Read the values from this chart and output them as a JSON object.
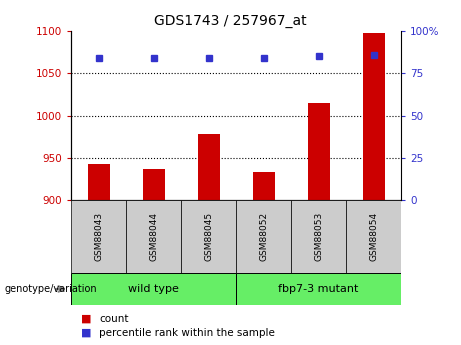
{
  "title": "GDS1743 / 257967_at",
  "categories": [
    "GSM88043",
    "GSM88044",
    "GSM88045",
    "GSM88052",
    "GSM88053",
    "GSM88054"
  ],
  "count_values": [
    943,
    937,
    978,
    933,
    1015,
    1098
  ],
  "percentile_values": [
    84,
    84,
    84,
    84,
    85,
    86
  ],
  "ylim_left": [
    900,
    1100
  ],
  "ylim_right": [
    0,
    100
  ],
  "yticks_left": [
    900,
    950,
    1000,
    1050,
    1100
  ],
  "yticks_right": [
    0,
    25,
    50,
    75,
    100
  ],
  "bar_color": "#cc0000",
  "dot_color": "#3333cc",
  "background_color": "#ffffff",
  "axis_label_color_left": "#cc0000",
  "axis_label_color_right": "#3333cc",
  "group1_label": "wild type",
  "group2_label": "fbp7-3 mutant",
  "group1_indices": [
    0,
    1,
    2
  ],
  "group2_indices": [
    3,
    4,
    5
  ],
  "group_box_color": "#66ee66",
  "tick_box_color": "#cccccc",
  "legend_count_label": "count",
  "legend_pct_label": "percentile rank within the sample",
  "genotype_label": "genotype/variation",
  "grid_dotted_ticks": [
    950,
    1000,
    1050
  ],
  "bar_width": 0.4
}
